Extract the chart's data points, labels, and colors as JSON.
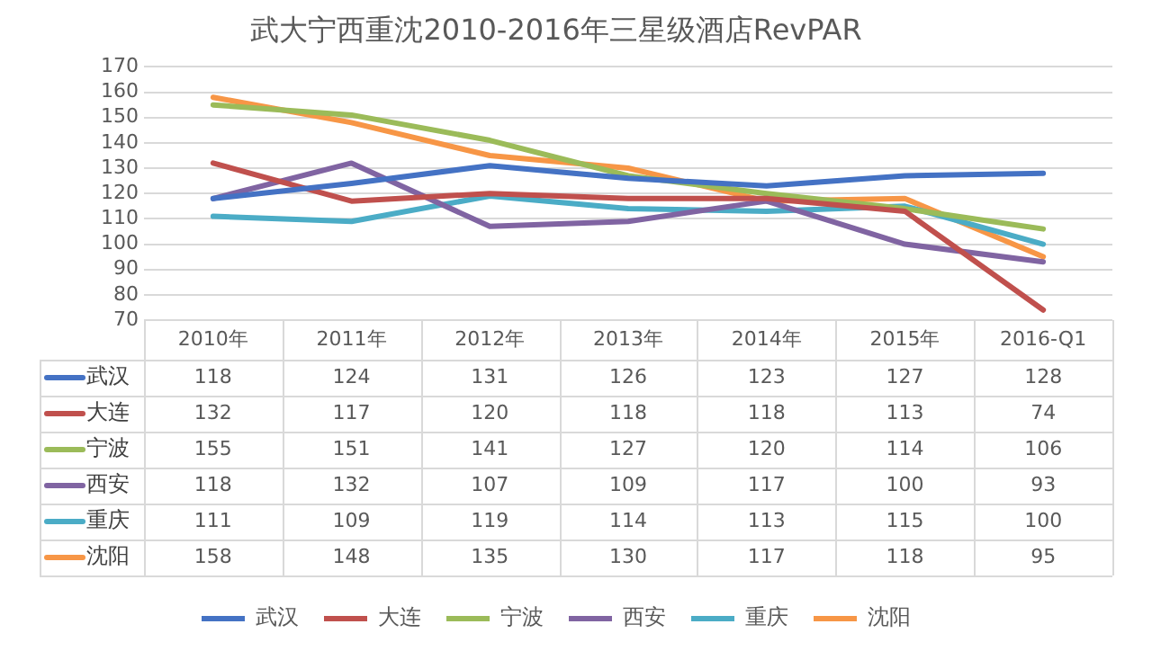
{
  "chart_data": {
    "type": "line",
    "title": "武大宁西重沈2010-2016年三星级酒店RevPAR",
    "categories": [
      "2010年",
      "2011年",
      "2012年",
      "2013年",
      "2014年",
      "2015年",
      "2016-Q1"
    ],
    "series": [
      {
        "name": "武汉",
        "color": "#4472c4",
        "values": [
          118,
          124,
          131,
          126,
          123,
          127,
          128
        ]
      },
      {
        "name": "大连",
        "color": "#c0504d",
        "values": [
          132,
          117,
          120,
          118,
          118,
          113,
          74
        ]
      },
      {
        "name": "宁波",
        "color": "#9bbb59",
        "values": [
          155,
          151,
          141,
          127,
          120,
          114,
          106
        ]
      },
      {
        "name": "西安",
        "color": "#8064a2",
        "values": [
          118,
          132,
          107,
          109,
          117,
          100,
          93
        ]
      },
      {
        "name": "重庆",
        "color": "#4bacc6",
        "values": [
          111,
          109,
          119,
          114,
          113,
          115,
          100
        ]
      },
      {
        "name": "沈阳",
        "color": "#f79646",
        "values": [
          158,
          148,
          135,
          130,
          117,
          118,
          95
        ]
      }
    ],
    "ylim": [
      70,
      170
    ],
    "yticks": [
      70,
      80,
      90,
      100,
      110,
      120,
      130,
      140,
      150,
      160,
      170
    ],
    "grid": "y",
    "legend": "bottom",
    "marker": "none",
    "line_style": "solid",
    "data_labels": true
  }
}
